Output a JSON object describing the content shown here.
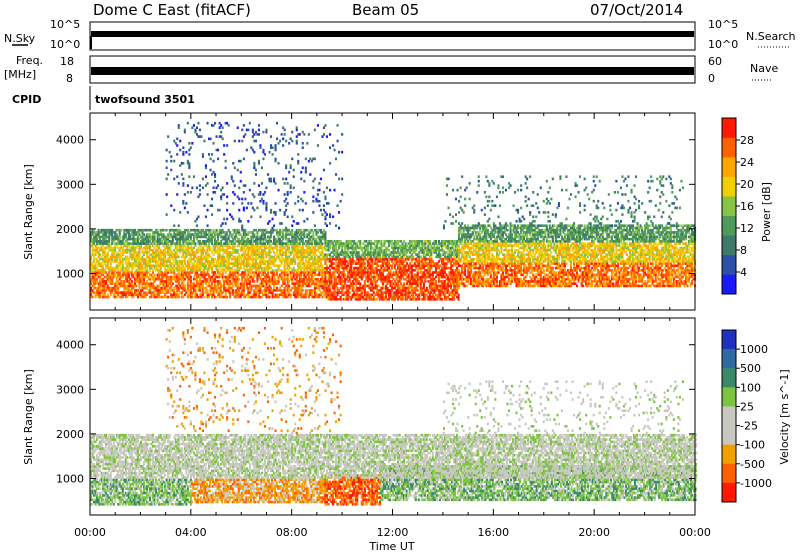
{
  "header": {
    "radar": "Dome C East (fitACF)",
    "beam": "Beam 05",
    "date": "07/Oct/2014"
  },
  "status_panels": {
    "nsky_label": "N.Sky",
    "nsearch_label": "N.Search",
    "nsky_ticks": [
      "10^5",
      "10^0"
    ],
    "nsearch_ticks": [
      "10^5",
      "10^0"
    ],
    "freq_label": "Freq.",
    "freq_unit": "[MHz]",
    "freq_ticks": [
      "18",
      "8"
    ],
    "nave_label": "Nave",
    "nave_ticks": [
      "60",
      "0"
    ],
    "cpid_label": "CPID",
    "cpid_value": "twofsound 3501"
  },
  "chart_data": [
    {
      "type": "heatmap",
      "panel": "power",
      "ylabel": "Slant Range [km]",
      "yticks": [
        1000,
        2000,
        3000,
        4000
      ],
      "ylim": [
        180,
        4600
      ],
      "xlim": [
        0,
        24
      ],
      "colorbar": {
        "label": "Power [dB]",
        "ticks": [
          4,
          8,
          12,
          16,
          20,
          24,
          28
        ],
        "range": [
          0,
          32
        ],
        "colors": [
          "#1a1aff",
          "#2c4fa8",
          "#3e7a6a",
          "#4e9a5a",
          "#88c444",
          "#f0d000",
          "#ffa500",
          "#ff6000",
          "#ff1a00"
        ]
      },
      "bands": [
        {
          "t0": 0.0,
          "t1": 9.3,
          "r0": 450,
          "r1": 1050,
          "level": 26
        },
        {
          "t0": 0.0,
          "t1": 9.3,
          "r0": 1050,
          "r1": 1650,
          "level": 20
        },
        {
          "t0": 0.0,
          "t1": 9.3,
          "r0": 1650,
          "r1": 2000,
          "level": 12
        },
        {
          "t0": 9.3,
          "t1": 14.6,
          "r0": 400,
          "r1": 1350,
          "level": 28
        },
        {
          "t0": 9.3,
          "t1": 14.6,
          "r0": 1350,
          "r1": 1750,
          "level": 14
        },
        {
          "t0": 14.6,
          "t1": 24.0,
          "r0": 700,
          "r1": 1250,
          "level": 26
        },
        {
          "t0": 14.6,
          "t1": 24.0,
          "r0": 1250,
          "r1": 1700,
          "level": 20
        },
        {
          "t0": 14.6,
          "t1": 24.0,
          "r0": 1700,
          "r1": 2100,
          "level": 12
        },
        {
          "t0": 3.0,
          "t1": 10.0,
          "r0": 2000,
          "r1": 4400,
          "level": 6,
          "sparse": true
        },
        {
          "t0": 14.0,
          "t1": 23.5,
          "r0": 2000,
          "r1": 3200,
          "level": 10,
          "sparse": true
        }
      ]
    },
    {
      "type": "heatmap",
      "panel": "velocity",
      "ylabel": "Slant Range [km]",
      "xlabel": "Time UT",
      "xticks": [
        "00:00",
        "04:00",
        "08:00",
        "12:00",
        "16:00",
        "20:00",
        "00:00"
      ],
      "yticks": [
        1000,
        2000,
        3000,
        4000
      ],
      "ylim": [
        180,
        4600
      ],
      "xlim": [
        0,
        24
      ],
      "colorbar": {
        "label": "Velocity [m s^-1]",
        "ticks": [
          "1000",
          "500",
          "100",
          "25",
          "-25",
          "-100",
          "-500",
          "-1000"
        ],
        "colors": [
          "#2030c0",
          "#2e6aa0",
          "#3a8a6a",
          "#7cc440",
          "#c8c8c0",
          "#c8c8c0",
          "#f0a000",
          "#ff6000",
          "#ff1a00"
        ]
      },
      "bands": [
        {
          "t0": 0.0,
          "t1": 4.0,
          "r0": 400,
          "r1": 1000,
          "level": 3
        },
        {
          "t0": 4.0,
          "t1": 9.3,
          "r0": 450,
          "r1": 1000,
          "level": 6
        },
        {
          "t0": 9.3,
          "t1": 11.5,
          "r0": 400,
          "r1": 1100,
          "level": 7
        },
        {
          "t0": 11.5,
          "t1": 24.0,
          "r0": 500,
          "r1": 1300,
          "level": 3
        },
        {
          "t0": 0.0,
          "t1": 24.0,
          "r0": 1000,
          "r1": 2000,
          "level": 4
        },
        {
          "t0": 3.0,
          "t1": 10.0,
          "r0": 2000,
          "r1": 4400,
          "level": 6,
          "sparse": true
        },
        {
          "t0": 14.0,
          "t1": 23.5,
          "r0": 2000,
          "r1": 3200,
          "level": 4,
          "sparse": true
        }
      ]
    }
  ]
}
